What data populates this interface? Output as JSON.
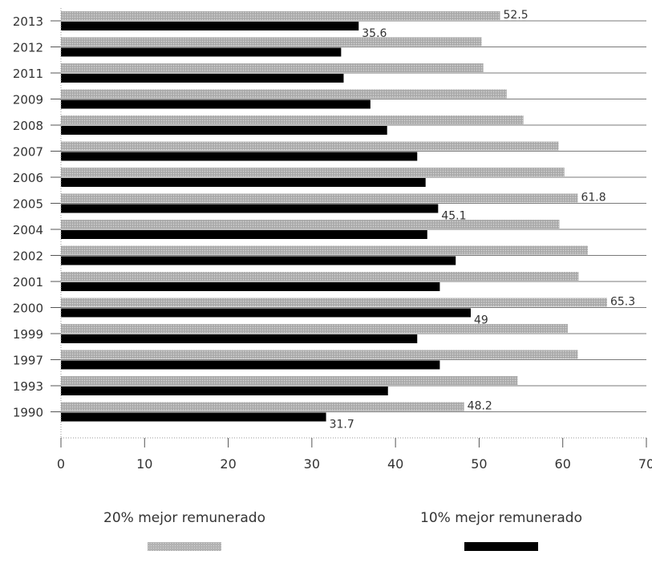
{
  "chart_data": {
    "type": "bar",
    "orientation": "horizontal",
    "categories": [
      "2013",
      "2012",
      "2011",
      "2009",
      "2008",
      "2007",
      "2006",
      "2005",
      "2004",
      "2002",
      "2001",
      "2000",
      "1999",
      "1997",
      "1993",
      "1990"
    ],
    "series": [
      {
        "name": "20% mejor remunerado",
        "color": "#b3b3b3",
        "values": [
          52.5,
          50.3,
          50.5,
          53.3,
          55.3,
          59.5,
          60.2,
          61.8,
          59.6,
          63.0,
          61.9,
          65.3,
          60.6,
          61.8,
          54.6,
          48.2
        ]
      },
      {
        "name": "10% mejor remunerado",
        "color": "#000000",
        "values": [
          35.6,
          33.5,
          33.8,
          37.0,
          39.0,
          42.6,
          43.6,
          45.1,
          43.8,
          47.2,
          45.3,
          49.0,
          42.6,
          45.3,
          39.1,
          31.7
        ]
      }
    ],
    "data_labels": [
      {
        "category": "2013",
        "series": 0,
        "text": "52.5"
      },
      {
        "category": "2013",
        "series": 1,
        "text": "35.6"
      },
      {
        "category": "2005",
        "series": 0,
        "text": "61.8"
      },
      {
        "category": "2005",
        "series": 1,
        "text": "45.1"
      },
      {
        "category": "2000",
        "series": 0,
        "text": "65.3"
      },
      {
        "category": "2000",
        "series": 1,
        "text": "49"
      },
      {
        "category": "1990",
        "series": 0,
        "text": "48.2"
      },
      {
        "category": "1990",
        "series": 1,
        "text": "31.7"
      }
    ],
    "xlim": [
      0,
      70
    ],
    "xticks": [
      "0",
      "10",
      "20",
      "30",
      "40",
      "50",
      "60",
      "70"
    ],
    "grid": "horizontal lines per category",
    "legend": "bottom"
  }
}
